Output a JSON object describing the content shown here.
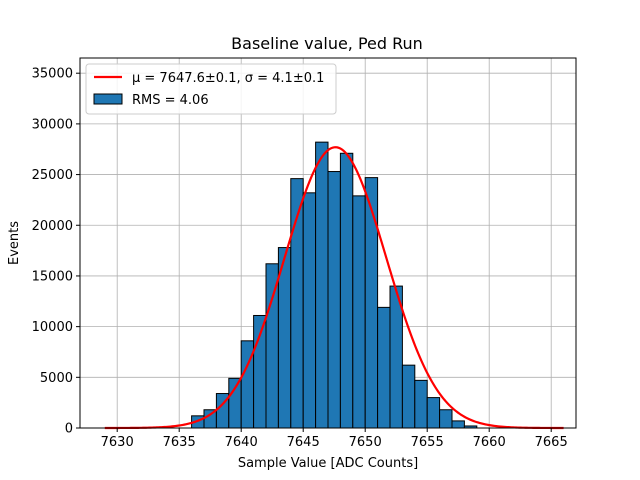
{
  "chart_data": {
    "type": "bar",
    "title": "Baseline value, Ped Run",
    "xlabel": "Sample Value [ADC Counts]",
    "ylabel": "Events",
    "xlim": [
      7627,
      7667
    ],
    "ylim": [
      0,
      36500
    ],
    "xticks": [
      7630,
      7635,
      7640,
      7645,
      7650,
      7655,
      7660,
      7665
    ],
    "yticks": [
      0,
      5000,
      10000,
      15000,
      20000,
      25000,
      30000,
      35000
    ],
    "grid": true,
    "legend_position": "top-left",
    "bar_color": "#1f77b4",
    "fit_color": "#ff0000",
    "histogram": {
      "name": "RMS = 4.06",
      "bins": [
        {
          "left": 7636,
          "right": 7637,
          "value": 1200
        },
        {
          "left": 7637,
          "right": 7638,
          "value": 1800
        },
        {
          "left": 7638,
          "right": 7639,
          "value": 3400
        },
        {
          "left": 7639,
          "right": 7640,
          "value": 4900
        },
        {
          "left": 7640,
          "right": 7641,
          "value": 8600
        },
        {
          "left": 7641,
          "right": 7642,
          "value": 11100
        },
        {
          "left": 7642,
          "right": 7643,
          "value": 16200
        },
        {
          "left": 7643,
          "right": 7644,
          "value": 17800
        },
        {
          "left": 7644,
          "right": 7645,
          "value": 24600
        },
        {
          "left": 7645,
          "right": 7646,
          "value": 23200
        },
        {
          "left": 7646,
          "right": 7647,
          "value": 28200
        },
        {
          "left": 7647,
          "right": 7648,
          "value": 25300
        },
        {
          "left": 7648,
          "right": 7649,
          "value": 27100
        },
        {
          "left": 7649,
          "right": 7650,
          "value": 22900
        },
        {
          "left": 7650,
          "right": 7651,
          "value": 24700
        },
        {
          "left": 7651,
          "right": 7652,
          "value": 11900
        },
        {
          "left": 7652,
          "right": 7653,
          "value": 14000
        },
        {
          "left": 7653,
          "right": 7654,
          "value": 6200
        },
        {
          "left": 7654,
          "right": 7655,
          "value": 4700
        },
        {
          "left": 7655,
          "right": 7656,
          "value": 3000
        },
        {
          "left": 7656,
          "right": 7657,
          "value": 1800
        },
        {
          "left": 7657,
          "right": 7658,
          "value": 700
        },
        {
          "left": 7658,
          "right": 7659,
          "value": 200
        }
      ]
    },
    "fit": {
      "name": "μ = 7647.6±0.1, σ = 4.1±0.1",
      "type": "gaussian",
      "mu": 7647.6,
      "sigma": 4.1,
      "amplitude": 27700,
      "x_range": [
        7629,
        7666
      ]
    }
  }
}
